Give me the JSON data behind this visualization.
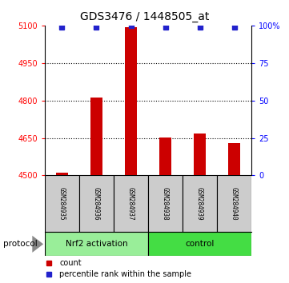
{
  "title": "GDS3476 / 1448505_at",
  "samples": [
    "GSM284935",
    "GSM284936",
    "GSM284937",
    "GSM284938",
    "GSM284939",
    "GSM284940"
  ],
  "counts": [
    4510,
    4812,
    5092,
    4652,
    4668,
    4630
  ],
  "percentile_ranks": [
    99,
    99,
    100,
    99,
    99,
    99
  ],
  "ylim_left": [
    4500,
    5100
  ],
  "ylim_right": [
    0,
    100
  ],
  "yticks_left": [
    4500,
    4650,
    4800,
    4950,
    5100
  ],
  "yticks_right": [
    0,
    25,
    50,
    75,
    100
  ],
  "ytick_labels_right": [
    "0",
    "25",
    "50",
    "75",
    "100%"
  ],
  "bar_color": "#cc0000",
  "dot_color": "#2222cc",
  "groups": [
    {
      "label": "Nrf2 activation",
      "indices": [
        0,
        1,
        2
      ],
      "color": "#99ee99"
    },
    {
      "label": "control",
      "indices": [
        3,
        4,
        5
      ],
      "color": "#44dd44"
    }
  ],
  "protocol_label": "protocol",
  "legend_count_label": "count",
  "legend_pct_label": "percentile rank within the sample",
  "background_color": "#ffffff",
  "grid_color": "#333333",
  "sample_box_color": "#cccccc",
  "bar_width": 0.35
}
